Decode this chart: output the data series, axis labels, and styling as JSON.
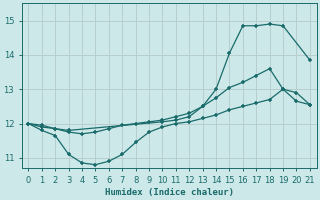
{
  "bg_color": "#cce8e8",
  "grid_color": "#b8cece",
  "line_color": "#1a6b6b",
  "marker": "+",
  "xlabel": "Humidex (Indice chaleur)",
  "xlim": [
    -0.5,
    21.5
  ],
  "ylim": [
    10.7,
    15.5
  ],
  "xticks": [
    0,
    1,
    2,
    3,
    4,
    5,
    6,
    7,
    8,
    9,
    10,
    11,
    12,
    13,
    14,
    15,
    16,
    17,
    18,
    19,
    20,
    21
  ],
  "yticks": [
    11,
    12,
    13,
    14,
    15
  ],
  "curve_upper_x": [
    0,
    1,
    2,
    3,
    10,
    11,
    12,
    13,
    14,
    15,
    16,
    17,
    18,
    19,
    21
  ],
  "curve_upper_y": [
    12.0,
    11.9,
    11.85,
    11.8,
    12.05,
    12.1,
    12.2,
    12.5,
    13.0,
    14.05,
    14.85,
    14.85,
    14.9,
    14.85,
    13.85
  ],
  "curve_mid_x": [
    0,
    1,
    2,
    3,
    4,
    5,
    6,
    7,
    8,
    9,
    10,
    11,
    12,
    13,
    14,
    15,
    16,
    17,
    18,
    19,
    20,
    21
  ],
  "curve_mid_y": [
    12.0,
    11.95,
    11.85,
    11.75,
    11.7,
    11.75,
    11.85,
    11.95,
    12.0,
    12.05,
    12.1,
    12.2,
    12.3,
    12.5,
    12.75,
    13.05,
    13.2,
    13.4,
    13.6,
    13.0,
    12.9,
    12.55
  ],
  "curve_lower_x": [
    0,
    1,
    2,
    3,
    4,
    5,
    6,
    7,
    8,
    9,
    10,
    11,
    12,
    13,
    14,
    15,
    16,
    17,
    18,
    19,
    20,
    21
  ],
  "curve_lower_y": [
    12.0,
    11.8,
    11.65,
    11.1,
    10.85,
    10.8,
    10.9,
    11.1,
    11.45,
    11.75,
    11.9,
    12.0,
    12.05,
    12.15,
    12.25,
    12.4,
    12.5,
    12.6,
    12.7,
    13.0,
    12.65,
    12.55
  ]
}
